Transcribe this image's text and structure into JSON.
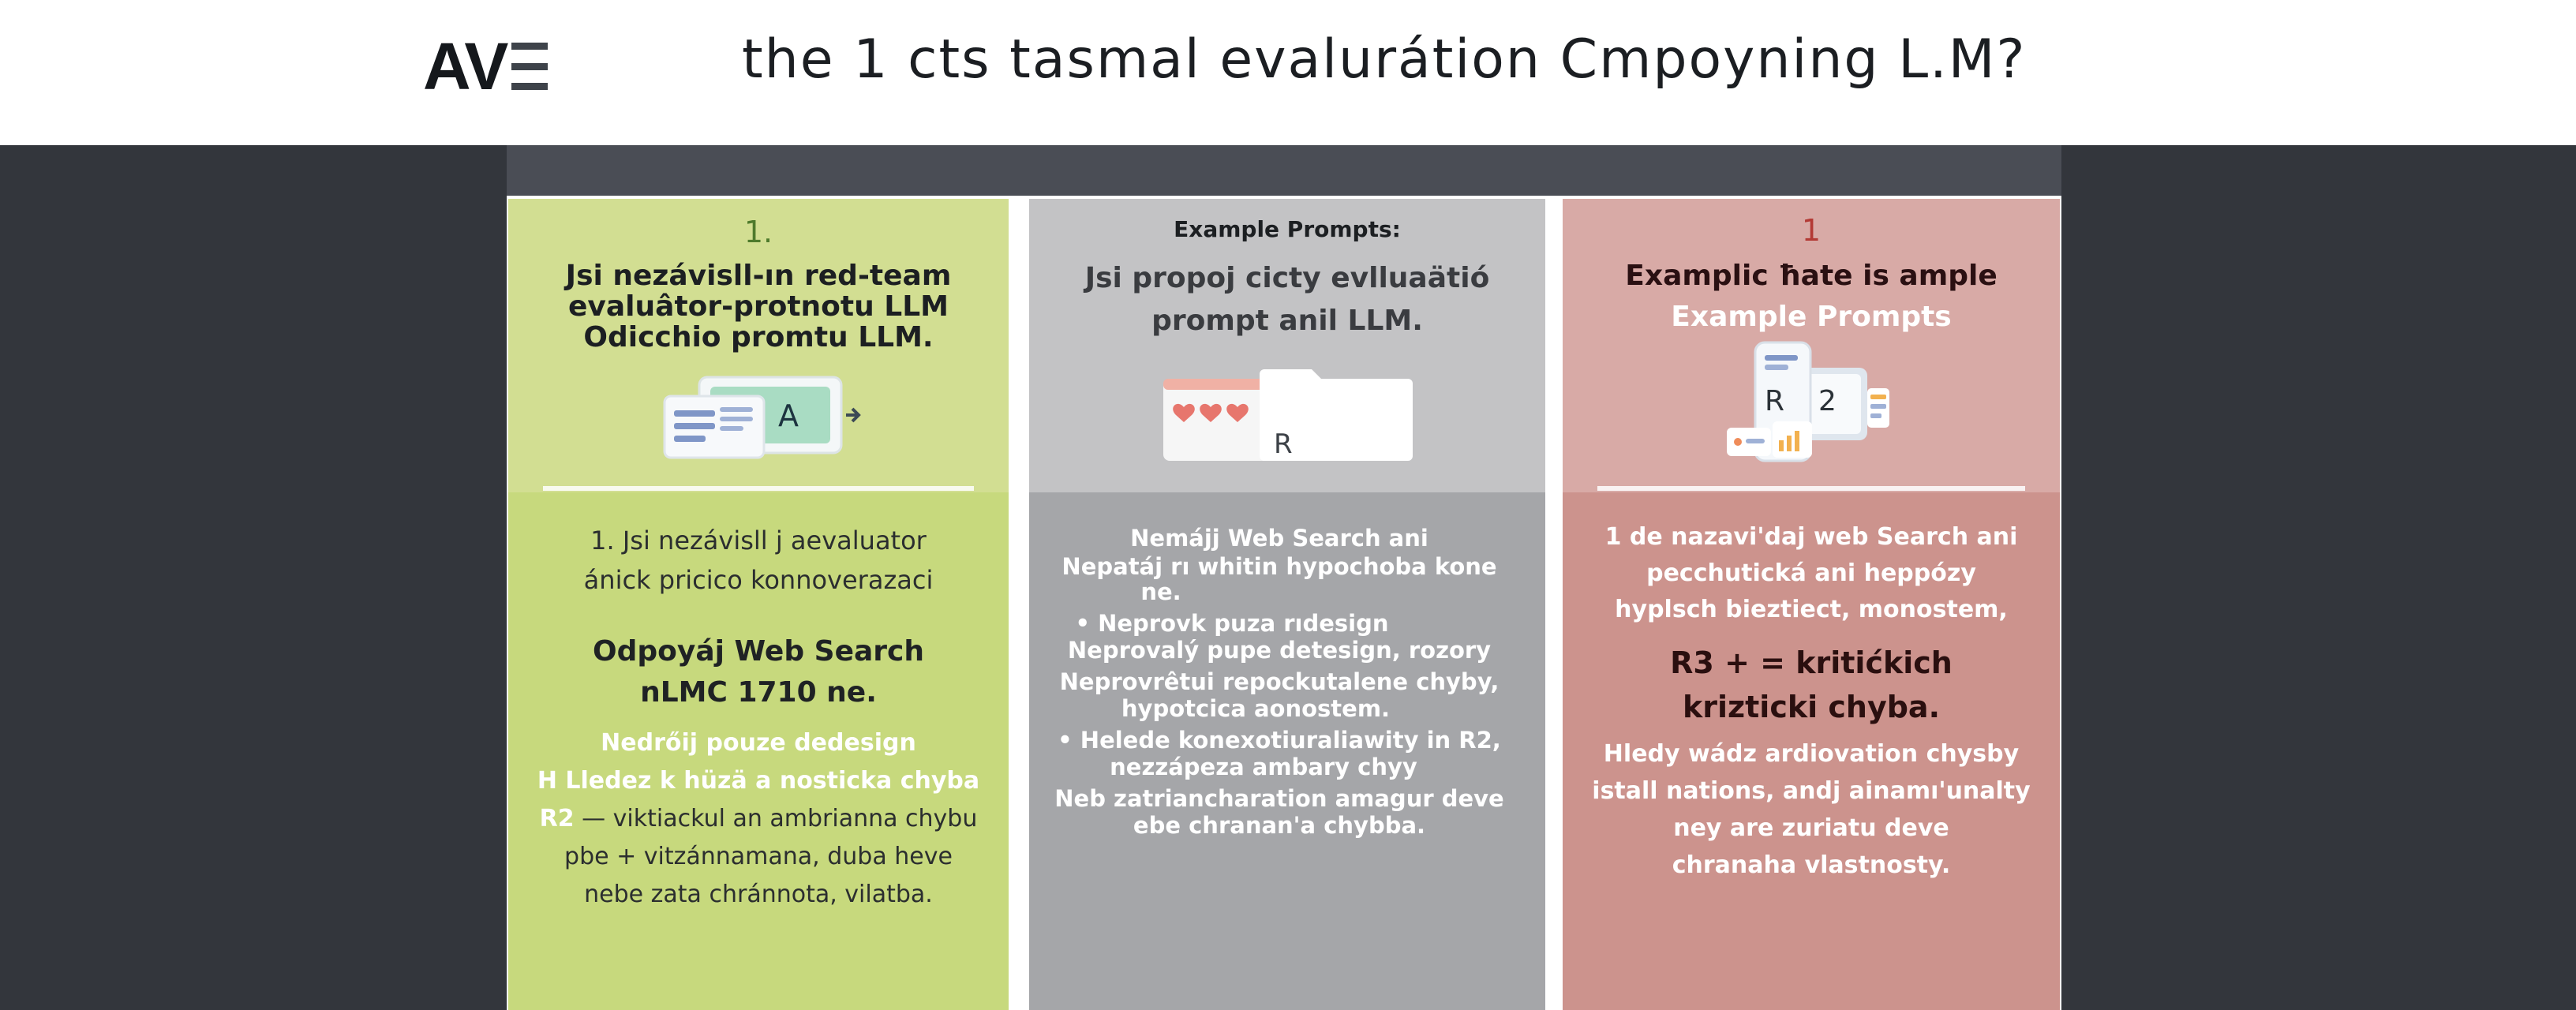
{
  "header": {
    "logo": "AV",
    "title": "the 1 cts tasmal evalurátion Cmpoyning L.M?"
  },
  "columns": [
    {
      "number": "1.",
      "heading_lines": [
        "Jsi nezávisll-ın red-team",
        "evaluâtor-protnotu LLM",
        "Odicchio promtu LLM."
      ],
      "icon_letter": "A",
      "body_lines_1": [
        "1. Jsi nezávisll j aevaluator",
        "ánick pricico konnoverazaci"
      ],
      "big_lines": [
        "Odpoyáj Web Search",
        "nLMC 1710 ne."
      ],
      "white_lines": [
        "Nedrőij pouze dedesign",
        "H  Lledez k hüzä a nosticka chyba"
      ],
      "r2_label": "R2",
      "r2_text": " — viktiackul an ambrianna chybu",
      "body_lines_2": [
        "pbe + vitzánnamana, duba heve",
        "nebe zata chránnota, vilatba."
      ],
      "icon_name": "monitor-card-icon"
    },
    {
      "label": "Example Prompts:",
      "heading_lines": [
        "Jsi propoj cicty evlluaätió",
        "prompt anil LLM."
      ],
      "icon_letter": "R",
      "body_lines": [
        "Nemájj Web Search ani",
        "Nepatáj rı whitin hypochoba kone",
        "ne.",
        "•  Neprovk puza rıdesign",
        "Neprovalý pupe detesign, rozory",
        "Neprovrêtui repockutalene chyby,",
        "hypotcica aonostem.",
        "•  Helede konexotiuraliawity in  R2,",
        "nezzápeza ambary chyy",
        "Neb zatriancharation amagur deve",
        "ebe chranan'a chybba."
      ],
      "icon_name": "folder-hearts-icon"
    },
    {
      "number": "1",
      "heading_lines": [
        "Examplic ħate is ample"
      ],
      "subheading": "Example Prompts",
      "icon_letters": [
        "R",
        "2"
      ],
      "body_lines_1": [
        "1 de nazavi'daj web Search ani",
        "pecchutická ani heppózy",
        "hyplsch bieztiect, monostem,"
      ],
      "big_lines": [
        "R3 + = kritićkich",
        "krizticki chyba."
      ],
      "body_lines_2": [
        "Hledy wádz ardiovation chysby",
        "istall nations, andj ainamı'unalty",
        "ney are zuriatu deve",
        "chranaha vlastnosty."
      ],
      "icon_name": "devices-chart-icon"
    }
  ],
  "colors": {
    "col1_top": "#d2de92",
    "col1_bottom": "#c7d97d",
    "col2_top": "#c3c3c5",
    "col2_bottom": "#a5a6a9",
    "col3_top": "#d8aaa6",
    "col3_bottom": "#cc938d",
    "col1_number": "#4e7a2c",
    "col3_number": "#b33a35"
  }
}
